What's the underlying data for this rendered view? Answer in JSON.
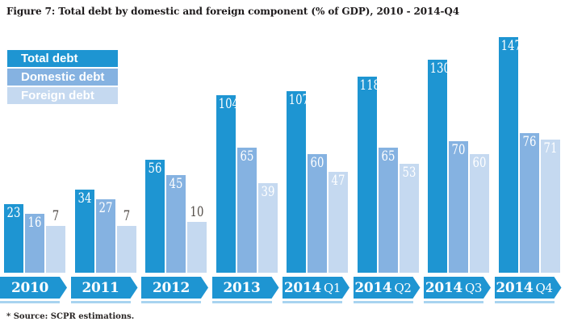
{
  "title": "Figure 7: Total debt by domestic and foreign component (% of GDP), 2010 - 2014-Q4",
  "source_note": "* Source: SCPR estimations.",
  "legend": {
    "items": [
      {
        "label": "Total debt",
        "color": "#1e95d2"
      },
      {
        "label": "Domestic debt",
        "color": "#85b2e1"
      },
      {
        "label": "Foreign debt",
        "color": "#c5d9f0"
      }
    ]
  },
  "chart_data": {
    "type": "bar",
    "title": "Total debt by domestic and foreign component (% of GDP), 2010 - 2014-Q4",
    "categories": [
      "2010",
      "2011",
      "2012",
      "2013",
      "2014 Q1",
      "2014 Q2",
      "2014 Q3",
      "2014 Q4"
    ],
    "series": [
      {
        "name": "Total debt",
        "color": "#1e95d2",
        "values": [
          23,
          34,
          56,
          104,
          107,
          118,
          130,
          147
        ]
      },
      {
        "name": "Domestic debt",
        "color": "#85b2e1",
        "values": [
          16,
          27,
          45,
          65,
          60,
          65,
          70,
          76
        ]
      },
      {
        "name": "Foreign debt",
        "color": "#c5d9f0",
        "values": [
          7,
          7,
          10,
          39,
          47,
          53,
          60,
          71
        ]
      }
    ],
    "unit": "% of GDP",
    "value_labels": true,
    "outside_label_max": 10,
    "grid": false,
    "y_axis_shown": false,
    "legend_position": "top-left"
  },
  "colors": {
    "axis_ribbon": "#1e95d2",
    "axis_underline": "#a8d4f0",
    "outside_label_text": "#514b46",
    "inside_label_text": "#ffffff",
    "title_text": "#1d1a1b"
  }
}
